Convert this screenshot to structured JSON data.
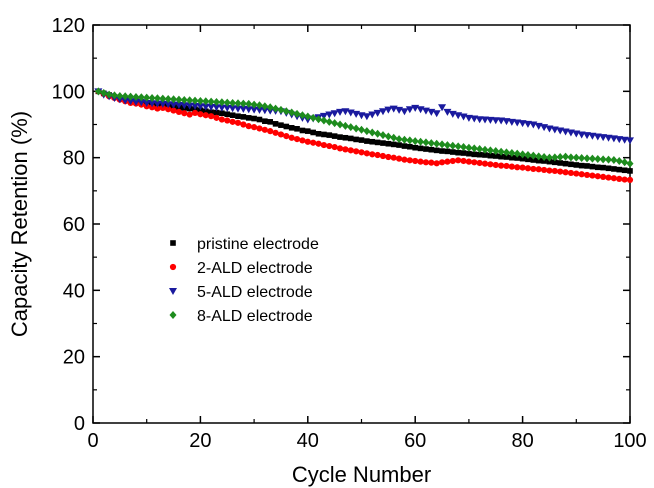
{
  "chart_data": {
    "type": "scatter",
    "xlabel": "Cycle Number",
    "ylabel": "Capacity Retention (%)",
    "xlim": [
      0,
      100
    ],
    "ylim": [
      0,
      120
    ],
    "xticks": [
      0,
      20,
      40,
      60,
      80,
      100
    ],
    "yticks": [
      0,
      20,
      40,
      60,
      80,
      100,
      120
    ],
    "grid": false,
    "legend_position": "center-left",
    "series": [
      {
        "name": "pristine electrode",
        "marker": "square",
        "color": "#000000",
        "x": [
          1,
          2,
          3,
          4,
          5,
          6,
          7,
          8,
          9,
          10,
          11,
          12,
          13,
          14,
          15,
          16,
          17,
          18,
          19,
          20,
          21,
          22,
          23,
          24,
          25,
          26,
          27,
          28,
          29,
          30,
          31,
          32,
          33,
          34,
          35,
          36,
          37,
          38,
          39,
          40,
          41,
          42,
          43,
          44,
          45,
          46,
          47,
          48,
          49,
          50,
          51,
          52,
          53,
          54,
          55,
          56,
          57,
          58,
          59,
          60,
          61,
          62,
          63,
          64,
          65,
          66,
          67,
          68,
          69,
          70,
          71,
          72,
          73,
          74,
          75,
          76,
          77,
          78,
          79,
          80,
          81,
          82,
          83,
          84,
          85,
          86,
          87,
          88,
          89,
          90,
          91,
          92,
          93,
          94,
          95,
          96,
          97,
          98,
          99,
          100
        ],
        "y": [
          100.0,
          99.4,
          98.9,
          98.3,
          98.0,
          97.5,
          97.0,
          97.1,
          96.8,
          96.5,
          96.2,
          96.0,
          96.3,
          95.7,
          95.5,
          95.2,
          95.0,
          94.8,
          94.6,
          94.3,
          94.0,
          93.7,
          93.6,
          93.4,
          93.1,
          92.8,
          92.5,
          92.3,
          92.0,
          91.8,
          91.5,
          91.0,
          90.8,
          90.2,
          89.8,
          89.4,
          89.0,
          88.7,
          88.2,
          88.0,
          87.6,
          87.2,
          87.0,
          86.8,
          86.5,
          86.2,
          86.0,
          85.8,
          85.5,
          85.3,
          85.0,
          84.8,
          84.6,
          84.4,
          84.2,
          84.0,
          83.8,
          83.5,
          83.3,
          83.0,
          82.8,
          82.6,
          82.4,
          82.2,
          82.0,
          81.9,
          81.7,
          81.5,
          81.4,
          81.2,
          81.0,
          80.9,
          80.8,
          80.6,
          80.5,
          80.3,
          80.2,
          80.0,
          79.9,
          79.7,
          79.5,
          79.3,
          79.1,
          79.0,
          78.8,
          78.6,
          78.4,
          78.2,
          78.0,
          77.8,
          77.6,
          77.5,
          77.3,
          77.1,
          77.0,
          76.8,
          76.6,
          76.4,
          76.2,
          76.0
        ]
      },
      {
        "name": "2-ALD electrode",
        "marker": "circle",
        "color": "#ff0000",
        "x": [
          1,
          2,
          3,
          4,
          5,
          6,
          7,
          8,
          9,
          10,
          11,
          12,
          13,
          14,
          15,
          16,
          17,
          18,
          19,
          20,
          21,
          22,
          23,
          24,
          25,
          26,
          27,
          28,
          29,
          30,
          31,
          32,
          33,
          34,
          35,
          36,
          37,
          38,
          39,
          40,
          41,
          42,
          43,
          44,
          45,
          46,
          47,
          48,
          49,
          50,
          51,
          52,
          53,
          54,
          55,
          56,
          57,
          58,
          59,
          60,
          61,
          62,
          63,
          64,
          65,
          66,
          67,
          68,
          69,
          70,
          71,
          72,
          73,
          74,
          75,
          76,
          77,
          78,
          79,
          80,
          81,
          82,
          83,
          84,
          85,
          86,
          87,
          88,
          89,
          90,
          91,
          92,
          93,
          94,
          95,
          96,
          97,
          98,
          99,
          100
        ],
        "y": [
          100.0,
          99.2,
          98.5,
          98.0,
          97.5,
          97.0,
          96.5,
          96.3,
          96.0,
          95.5,
          95.2,
          94.8,
          95.0,
          94.6,
          94.2,
          93.8,
          93.4,
          93.0,
          93.5,
          93.1,
          92.8,
          92.5,
          92.0,
          91.5,
          91.2,
          90.8,
          90.5,
          90.0,
          89.5,
          89.2,
          88.8,
          88.4,
          88.0,
          87.5,
          87.0,
          86.5,
          86.0,
          85.6,
          85.2,
          84.8,
          84.5,
          84.2,
          83.8,
          83.5,
          83.2,
          82.8,
          82.5,
          82.2,
          81.9,
          81.6,
          81.3,
          81.0,
          80.8,
          80.5,
          80.2,
          80.0,
          79.7,
          79.4,
          79.2,
          79.0,
          78.8,
          78.6,
          78.5,
          78.3,
          78.6,
          78.8,
          79.0,
          79.2,
          79.0,
          78.8,
          78.6,
          78.4,
          78.2,
          78.0,
          77.8,
          77.6,
          77.5,
          77.3,
          77.1,
          77.0,
          76.8,
          76.6,
          76.5,
          76.3,
          76.1,
          76.0,
          75.8,
          75.6,
          75.4,
          75.2,
          75.0,
          74.8,
          74.6,
          74.4,
          74.2,
          74.0,
          73.8,
          73.6,
          73.4,
          73.3
        ]
      },
      {
        "name": "5-ALD electrode",
        "marker": "triangle-down",
        "color": "#1a1a9e",
        "x": [
          1,
          2,
          3,
          4,
          5,
          6,
          7,
          8,
          9,
          10,
          11,
          12,
          13,
          14,
          15,
          16,
          17,
          18,
          19,
          20,
          21,
          22,
          23,
          24,
          25,
          26,
          27,
          28,
          29,
          30,
          31,
          32,
          33,
          34,
          35,
          36,
          37,
          38,
          39,
          40,
          41,
          42,
          43,
          44,
          45,
          46,
          47,
          48,
          49,
          50,
          51,
          52,
          53,
          54,
          55,
          56,
          57,
          58,
          59,
          60,
          61,
          62,
          63,
          64,
          65,
          66,
          67,
          68,
          69,
          70,
          71,
          72,
          73,
          74,
          75,
          76,
          77,
          78,
          79,
          80,
          81,
          82,
          83,
          84,
          85,
          86,
          87,
          88,
          89,
          90,
          91,
          92,
          93,
          94,
          95,
          96,
          97,
          98,
          99,
          100
        ],
        "y": [
          100.0,
          99.0,
          98.5,
          98.0,
          97.6,
          97.2,
          97.0,
          96.8,
          96.7,
          96.5,
          96.4,
          96.3,
          96.2,
          96.1,
          96.0,
          95.9,
          95.8,
          95.7,
          95.6,
          95.5,
          95.4,
          95.3,
          95.2,
          95.1,
          95.0,
          94.9,
          94.8,
          94.7,
          94.6,
          94.5,
          94.4,
          94.3,
          94.2,
          94.1,
          94.0,
          93.5,
          93.0,
          92.5,
          92.0,
          91.5,
          91.8,
          92.2,
          92.6,
          93.0,
          93.4,
          93.8,
          94.0,
          93.6,
          93.2,
          92.8,
          92.5,
          93.0,
          93.5,
          94.0,
          94.5,
          94.8,
          94.4,
          94.0,
          94.6,
          95.0,
          94.6,
          94.2,
          93.8,
          93.4,
          95.2,
          93.8,
          93.2,
          92.8,
          92.4,
          92.0,
          91.8,
          91.6,
          91.5,
          91.4,
          91.3,
          91.2,
          91.0,
          90.8,
          90.6,
          90.4,
          90.2,
          90.0,
          89.6,
          89.2,
          88.8,
          88.5,
          88.2,
          87.9,
          87.6,
          87.3,
          87.0,
          86.8,
          86.6,
          86.4,
          86.2,
          86.0,
          85.8,
          85.6,
          85.4,
          85.2
        ]
      },
      {
        "name": "8-ALD electrode",
        "marker": "diamond",
        "color": "#1e8c1e",
        "x": [
          1,
          2,
          3,
          4,
          5,
          6,
          7,
          8,
          9,
          10,
          11,
          12,
          13,
          14,
          15,
          16,
          17,
          18,
          19,
          20,
          21,
          22,
          23,
          24,
          25,
          26,
          27,
          28,
          29,
          30,
          31,
          32,
          33,
          34,
          35,
          36,
          37,
          38,
          39,
          40,
          41,
          42,
          43,
          44,
          45,
          46,
          47,
          48,
          49,
          50,
          51,
          52,
          53,
          54,
          55,
          56,
          57,
          58,
          59,
          60,
          61,
          62,
          63,
          64,
          65,
          66,
          67,
          68,
          69,
          70,
          71,
          72,
          73,
          74,
          75,
          76,
          77,
          78,
          79,
          80,
          81,
          82,
          83,
          84,
          85,
          86,
          87,
          88,
          89,
          90,
          91,
          92,
          93,
          94,
          95,
          96,
          97,
          98,
          99,
          100
        ],
        "y": [
          100.0,
          99.5,
          99.0,
          98.8,
          98.6,
          98.5,
          98.4,
          98.3,
          98.2,
          98.1,
          98.0,
          97.9,
          97.8,
          97.7,
          97.6,
          97.5,
          97.4,
          97.3,
          97.2,
          97.1,
          97.0,
          96.9,
          96.8,
          96.7,
          96.6,
          96.5,
          96.4,
          96.3,
          96.2,
          96.0,
          95.8,
          95.5,
          95.2,
          94.8,
          94.4,
          94.0,
          93.6,
          93.2,
          92.8,
          92.4,
          92.0,
          91.6,
          91.2,
          90.8,
          90.4,
          90.0,
          89.6,
          89.2,
          88.8,
          88.4,
          88.0,
          87.6,
          87.2,
          86.8,
          86.4,
          86.0,
          85.6,
          85.4,
          85.2,
          85.0,
          84.8,
          84.6,
          84.4,
          84.2,
          84.0,
          83.8,
          83.6,
          83.4,
          83.2,
          83.0,
          82.8,
          82.6,
          82.4,
          82.2,
          82.0,
          81.8,
          81.6,
          81.4,
          81.2,
          81.0,
          80.8,
          80.6,
          80.4,
          80.2,
          80.0,
          80.1,
          80.2,
          80.3,
          80.1,
          80.0,
          79.9,
          79.8,
          79.7,
          79.6,
          79.5,
          79.4,
          79.3,
          79.0,
          78.6,
          78.2
        ]
      }
    ]
  }
}
